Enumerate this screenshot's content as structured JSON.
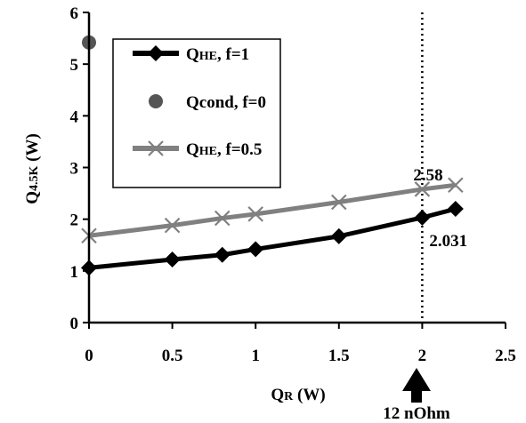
{
  "chart_data": {
    "type": "line",
    "title": "",
    "xlabel_main": "Q",
    "xlabel_sub": "R",
    "xlabel_rest": " (W)",
    "ylabel_main": "Q",
    "ylabel_sub": "4.5K",
    "ylabel_rest": " (W)",
    "xlim": [
      0,
      2.5
    ],
    "ylim": [
      0,
      6
    ],
    "xticks": [
      "0",
      "0.5",
      "1",
      "1.5",
      "2",
      "2.5"
    ],
    "yticks": [
      "0",
      "1",
      "2",
      "3",
      "4",
      "5",
      "6"
    ],
    "grid": false,
    "legend_position": "top-left",
    "series": [
      {
        "name_main": "Q",
        "name_sub": "HE",
        "name_rest": ", f=1",
        "marker": "diamond",
        "color": "#000000",
        "x": [
          0,
          0.5,
          0.8,
          1.0,
          1.5,
          2.0,
          2.2
        ],
        "y": [
          1.06,
          1.22,
          1.31,
          1.42,
          1.67,
          2.031,
          2.2
        ]
      },
      {
        "name_main": "Qcond",
        "name_sub": "",
        "name_rest": ", f=0",
        "marker": "circle",
        "color": "#555555",
        "x": [
          0
        ],
        "y": [
          5.42
        ]
      },
      {
        "name_main": "Q",
        "name_sub": "HE",
        "name_rest": ", f=0.5",
        "marker": "x",
        "color": "#808080",
        "x": [
          0,
          0.5,
          0.8,
          1.0,
          1.5,
          2.0,
          2.2
        ],
        "y": [
          1.68,
          1.88,
          2.02,
          2.1,
          2.33,
          2.58,
          2.66
        ]
      }
    ],
    "vline": {
      "x": 2.0,
      "style": "dotted"
    },
    "annotations": [
      {
        "text": "2.58",
        "x": 2.0,
        "y": 2.58
      },
      {
        "text": "2.031",
        "x": 2.0,
        "y": 2.031
      }
    ],
    "arrow_label": "12 nOhm"
  }
}
